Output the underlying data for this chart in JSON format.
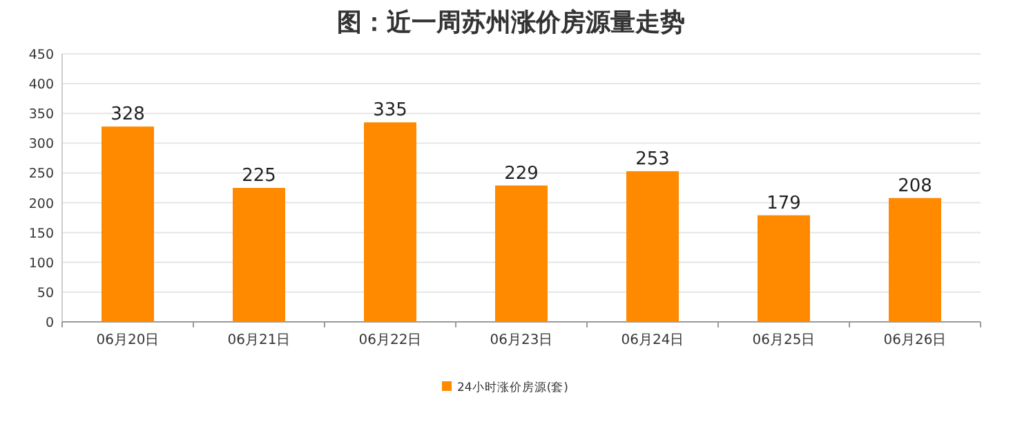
{
  "chart_data": {
    "type": "bar",
    "title": "图：近一周苏州涨价房源量走势",
    "categories": [
      "06月20日",
      "06月21日",
      "06月22日",
      "06月23日",
      "06月24日",
      "06月25日",
      "06月26日"
    ],
    "series": [
      {
        "name": "24小时涨价房源(套)",
        "color": "#ff8a00",
        "values": [
          328,
          225,
          335,
          229,
          253,
          179,
          208
        ]
      }
    ],
    "ylim": [
      0,
      450
    ],
    "yticks": [
      0,
      50,
      100,
      150,
      200,
      250,
      300,
      350,
      400,
      450
    ],
    "grid": "y",
    "legend": "bottom",
    "data_labels": true
  }
}
